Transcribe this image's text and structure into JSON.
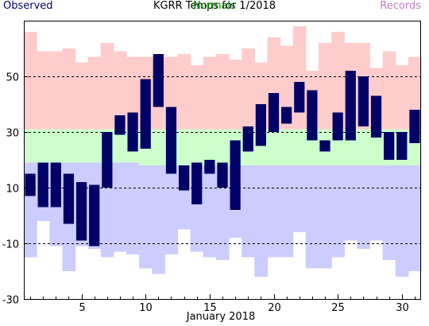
{
  "chart_data": {
    "type": "bar",
    "title": "KGRR Temps for 1/2018",
    "xlabel": "January 2018",
    "ylabel": "",
    "legend": {
      "observed": "Observed",
      "normals": "Normals",
      "records": "Records"
    },
    "ylim": [
      -30,
      70
    ],
    "yticks": [
      -30,
      -10,
      10,
      30,
      50
    ],
    "xticks": [
      5,
      10,
      15,
      20,
      25,
      30
    ],
    "grid": "horizontal dashed",
    "colors": {
      "observed": "#000066",
      "normals": "#ccffcc",
      "records_high": "#ffcccc",
      "records_low": "#ccccff",
      "records_label": "#c080c0",
      "normals_label": "#008000",
      "observed_label": "#000066"
    },
    "days": [
      1,
      2,
      3,
      4,
      5,
      6,
      7,
      8,
      9,
      10,
      11,
      12,
      13,
      14,
      15,
      16,
      17,
      18,
      19,
      20,
      21,
      22,
      23,
      24,
      25,
      26,
      27,
      28,
      29,
      30,
      31
    ],
    "observed_high": [
      15,
      19,
      19,
      15,
      12,
      11,
      30,
      36,
      37,
      49,
      58,
      39,
      18,
      19,
      20,
      19,
      27,
      32,
      40,
      44,
      39,
      48,
      45,
      27,
      37,
      52,
      50,
      43,
      30,
      30,
      38
    ],
    "observed_low": [
      7,
      3,
      3,
      -3,
      -9,
      -11,
      10,
      29,
      23,
      24,
      39,
      15,
      9,
      4,
      15,
      10,
      2,
      23,
      25,
      30,
      33,
      37,
      27,
      23,
      27,
      27,
      32,
      28,
      20,
      20,
      26
    ],
    "normal_high": [
      31,
      31,
      31,
      31,
      31,
      31,
      31,
      31,
      31,
      31,
      31,
      31,
      31,
      31,
      31,
      31,
      31,
      31,
      31,
      31,
      31,
      31,
      31,
      31,
      31,
      31,
      31,
      31,
      31,
      31,
      31
    ],
    "normal_low": [
      19,
      19,
      19,
      19,
      19,
      19,
      19,
      19,
      19,
      18,
      18,
      18,
      18,
      18,
      18,
      18,
      18,
      18,
      18,
      18,
      18,
      18,
      18,
      18,
      18,
      18,
      18,
      18,
      18,
      18,
      18
    ],
    "record_high": [
      66,
      59,
      59,
      60,
      55,
      57,
      62,
      59,
      57,
      57,
      57,
      57,
      58,
      54,
      57,
      58,
      56,
      60,
      55,
      64,
      61,
      68,
      52,
      62,
      66,
      62,
      62,
      53,
      59,
      54,
      57
    ],
    "record_low": [
      -15,
      -2,
      -11,
      -20,
      -11,
      -12,
      -15,
      -13,
      -14,
      -19,
      -21,
      -14,
      -5,
      -13,
      -15,
      -16,
      -8,
      -15,
      -22,
      -15,
      -15,
      -6,
      -19,
      -19,
      -15,
      -9,
      -12,
      -9,
      -16,
      -22,
      -20
    ]
  }
}
